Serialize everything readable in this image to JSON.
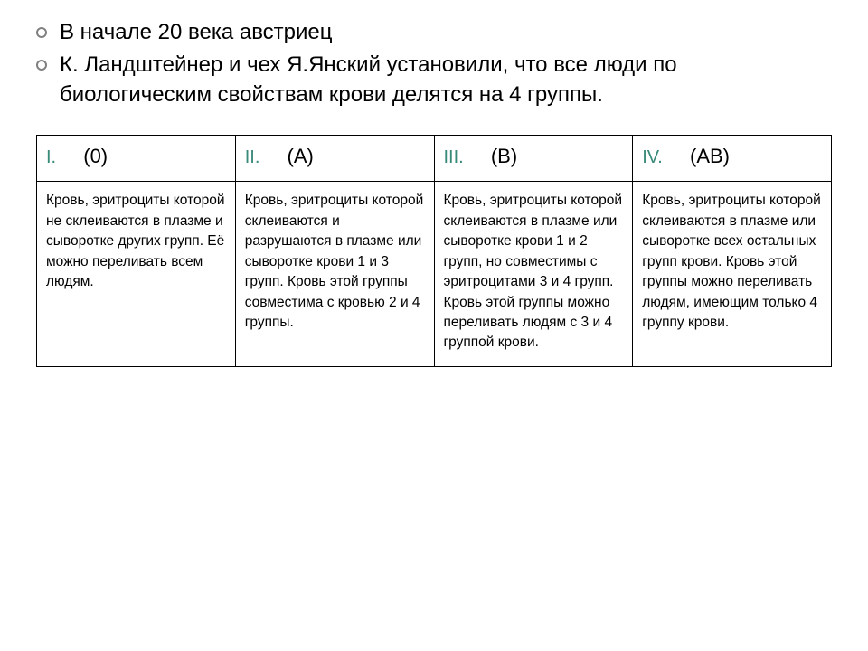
{
  "intro": {
    "line1": "В начале 20 века австриец",
    "line2": "К. Ландштейнер и чех Я.Янский установили, что все люди по биологическим свойствам крови делятся на 4 группы."
  },
  "table": {
    "columns": [
      {
        "roman": "I.",
        "label": "(0)"
      },
      {
        "roman": "II.",
        "label": "(А)"
      },
      {
        "roman": "III.",
        "label": "(В)"
      },
      {
        "roman": "IV.",
        "label": "(АВ)"
      }
    ],
    "rows": [
      [
        "Кровь, эритроциты которой не склеиваются в плазме и сыворотке других групп. Её можно переливать всем людям.",
        "Кровь, эритроциты которой склеиваются и разрушаются в плазме или сыворотке крови 1 и 3 групп. Кровь этой группы совместима с кровью 2 и 4 группы.",
        "Кровь, эритроциты которой склеиваются в плазме или сыворотке крови 1 и 2 групп, но совместимы с эритроцитами 3 и 4 групп. Кровь этой группы можно переливать людям с 3 и 4 группой крови.",
        "Кровь, эритроциты которой склеиваются в плазме или сыворотке всех остальных групп крови. Кровь этой группы можно переливать людям, имеющим только 4 группу крови."
      ]
    ],
    "border_color": "#000000",
    "roman_color": "#3a8a7a",
    "header_fontsize": 22,
    "body_fontsize": 15.5,
    "background_color": "#ffffff"
  }
}
